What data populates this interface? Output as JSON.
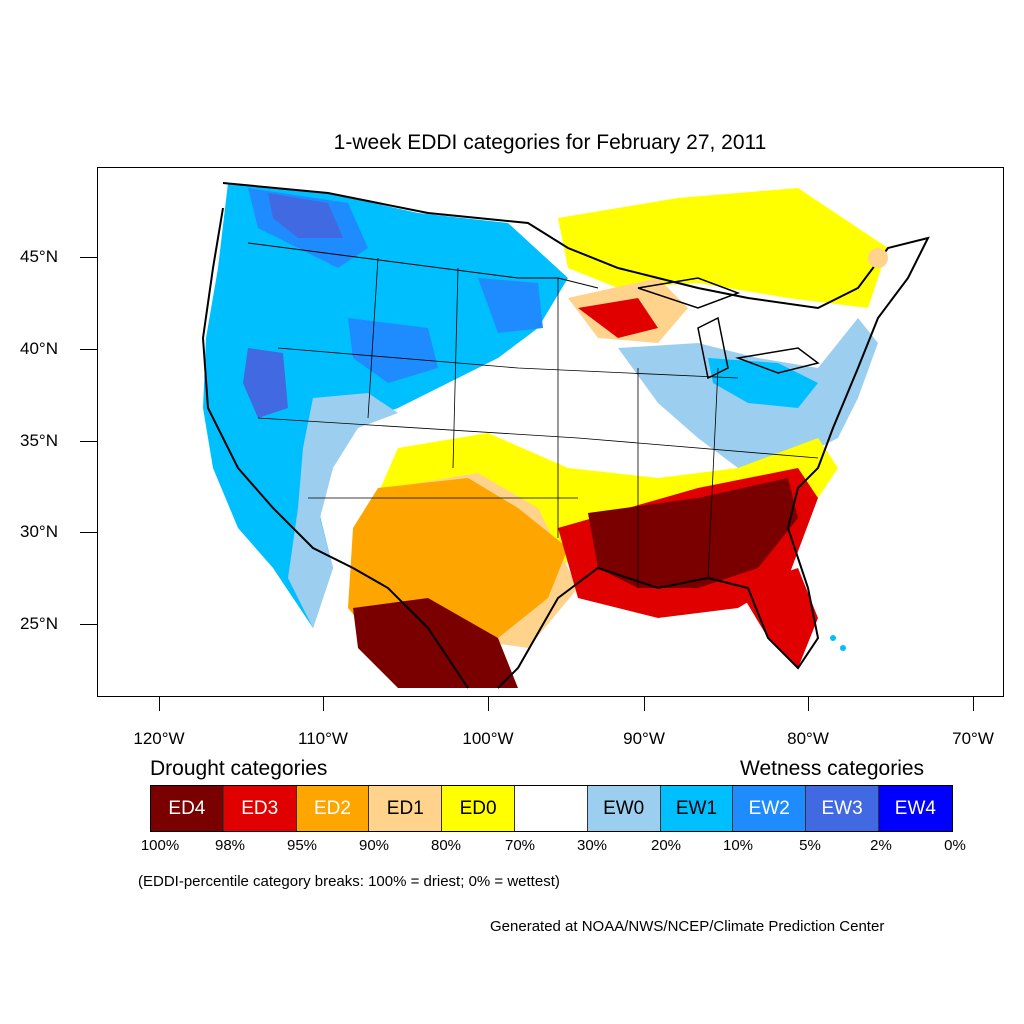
{
  "title": "1-week EDDI categories for February 27, 2011",
  "lat_labels": [
    "45°N",
    "40°N",
    "35°N",
    "30°N",
    "25°N"
  ],
  "lon_labels": [
    "120°W",
    "110°W",
    "100°W",
    "90°W",
    "80°W",
    "70°W"
  ],
  "drought_heading": "Drought categories",
  "wetness_heading": "Wetness categories",
  "legend": [
    {
      "label": "ED4",
      "color": "#7a0000",
      "text_color": "#ffffff"
    },
    {
      "label": "ED3",
      "color": "#e10000",
      "text_color": "#ffffff"
    },
    {
      "label": "ED2",
      "color": "#ffa500",
      "text_color": "#ffffff"
    },
    {
      "label": "ED1",
      "color": "#ffd38c",
      "text_color": "#000000"
    },
    {
      "label": "ED0",
      "color": "#ffff00",
      "text_color": "#000000"
    },
    {
      "label": "",
      "color": "#ffffff",
      "text_color": "#000000"
    },
    {
      "label": "EW0",
      "color": "#9ccfef",
      "text_color": "#000000"
    },
    {
      "label": "EW1",
      "color": "#00bfff",
      "text_color": "#000000"
    },
    {
      "label": "EW2",
      "color": "#1e8cff",
      "text_color": "#ffffff"
    },
    {
      "label": "EW3",
      "color": "#4169e1",
      "text_color": "#ffffff"
    },
    {
      "label": "EW4",
      "color": "#0000ff",
      "text_color": "#ffffff"
    }
  ],
  "percent_breaks": [
    "100%",
    "98%",
    "95%",
    "90%",
    "80%",
    "70%",
    "30%",
    "20%",
    "10%",
    "5%",
    "2%",
    "0%"
  ],
  "note": "(EDDI-percentile category breaks: 100% = driest; 0% = wettest)",
  "credit": "Generated at NOAA/NWS/NCEP/Climate Prediction Center"
}
